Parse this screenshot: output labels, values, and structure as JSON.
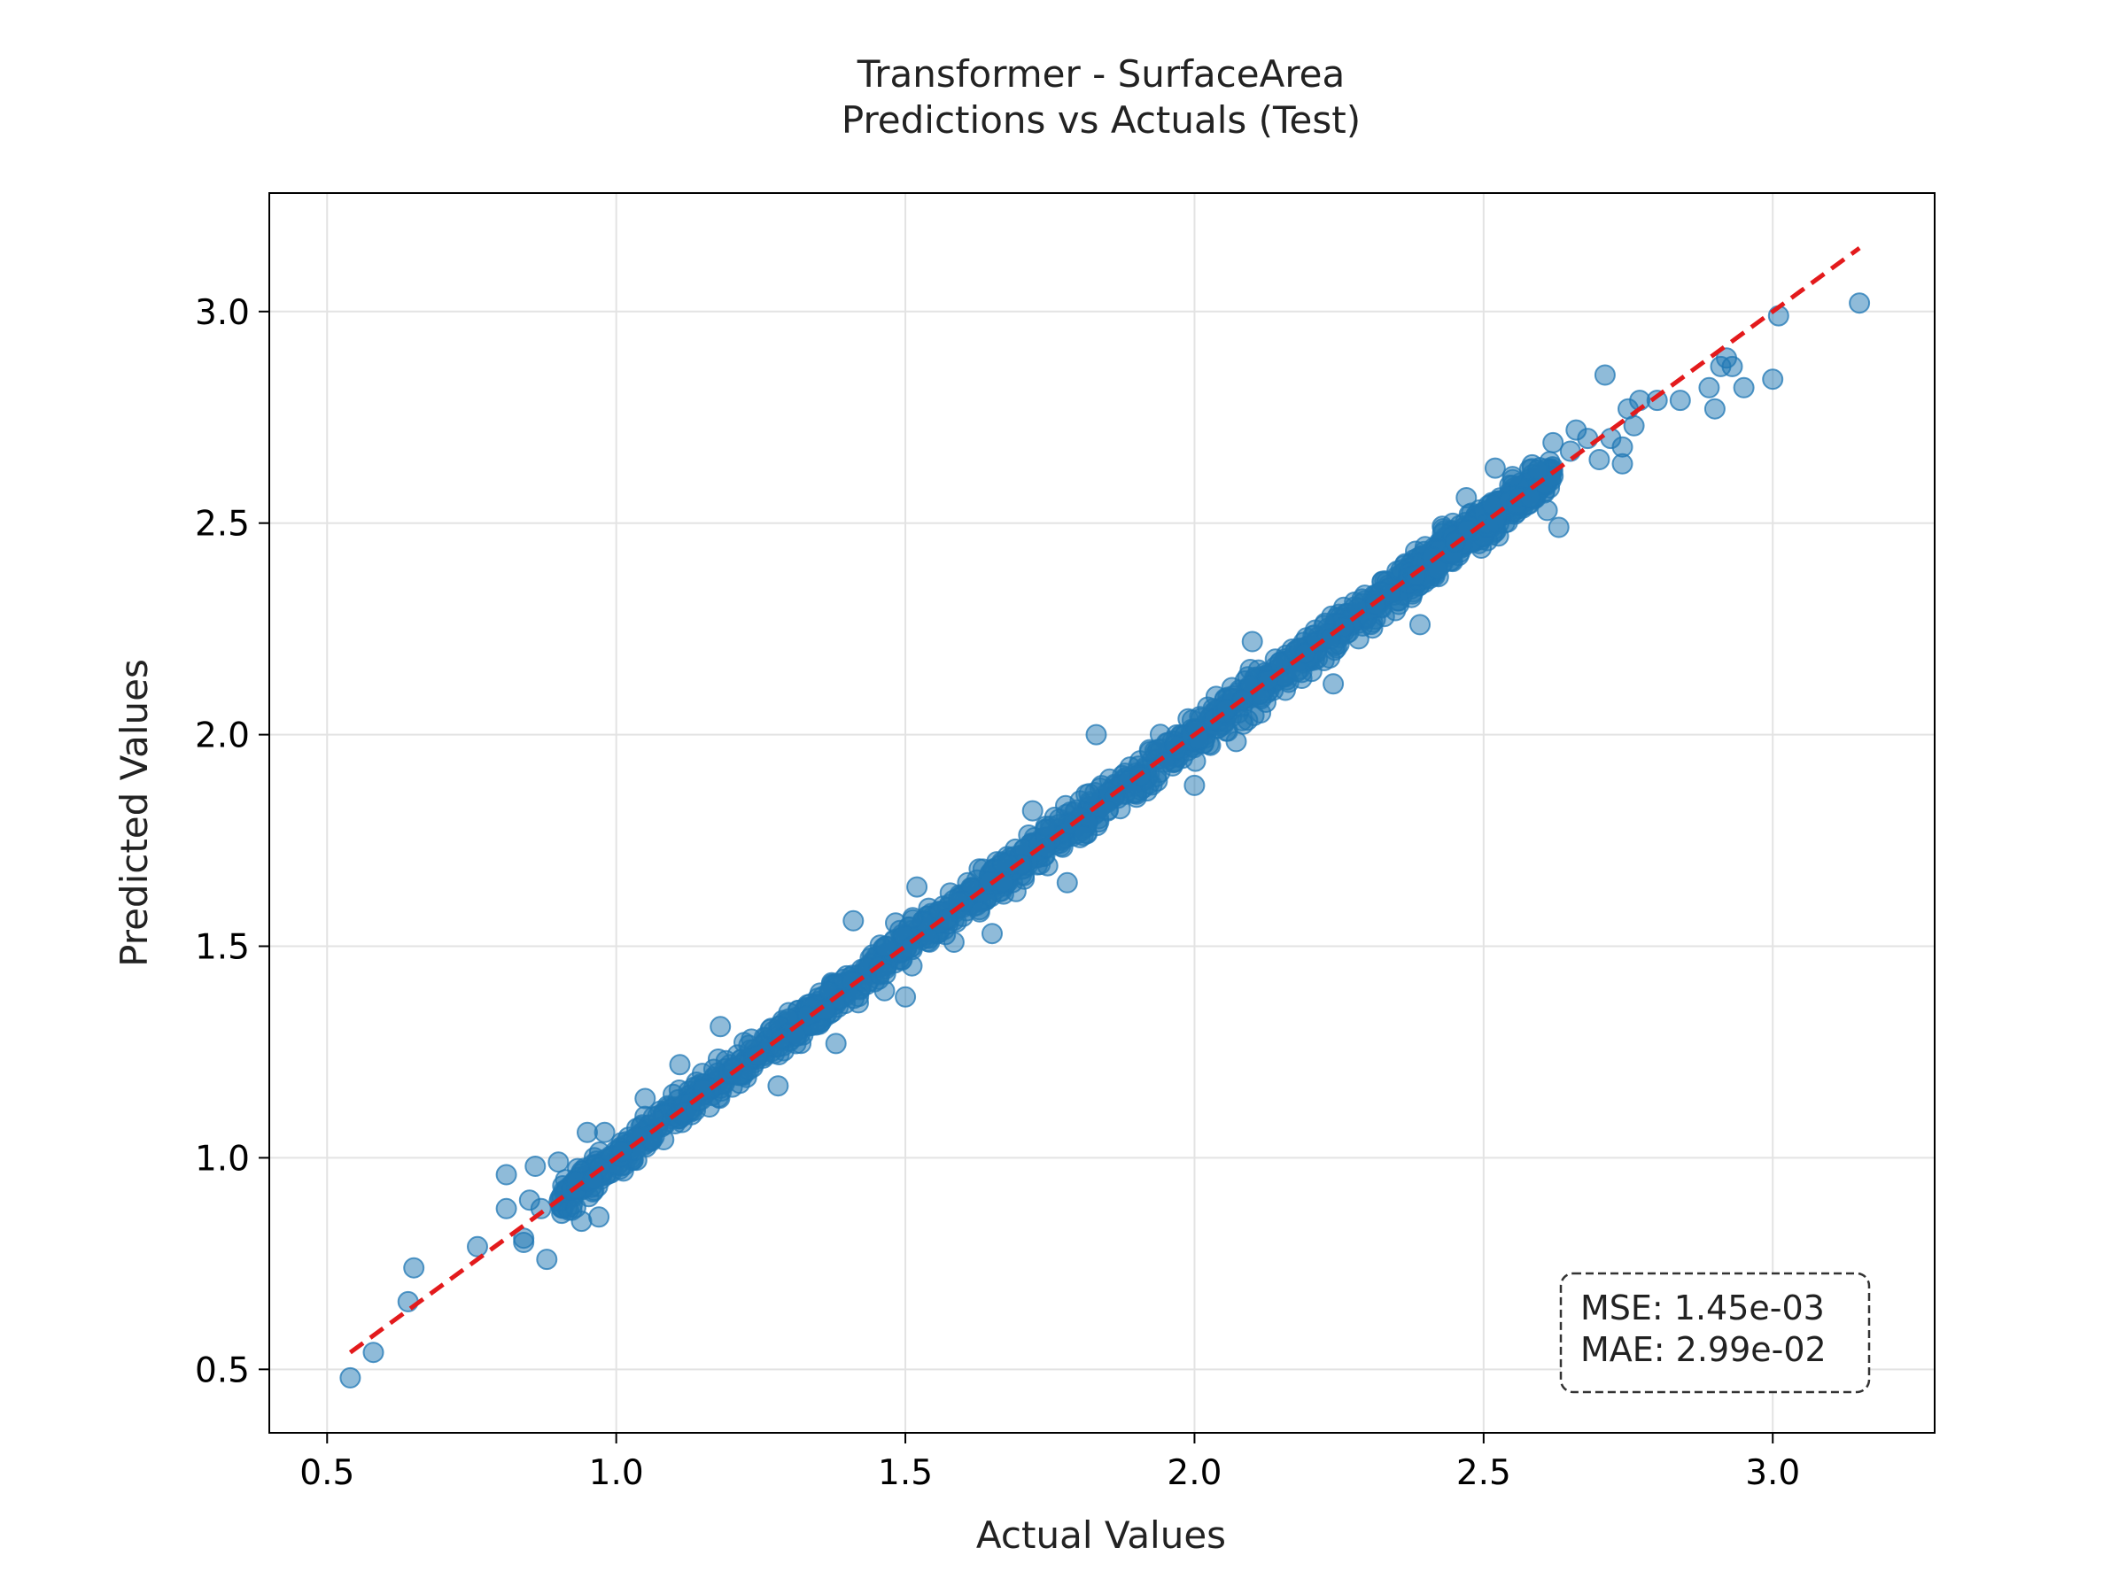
{
  "chart_data": {
    "type": "scatter",
    "title": "Transformer - SurfaceArea",
    "subtitle": "Predictions vs Actuals (Test)",
    "xlabel": "Actual Values",
    "ylabel": "Predicted Values",
    "xlim": [
      0.4,
      3.28
    ],
    "ylim": [
      0.35,
      3.28
    ],
    "xticks": [
      0.5,
      1.0,
      1.5,
      2.0,
      2.5,
      3.0
    ],
    "yticks": [
      0.5,
      1.0,
      1.5,
      2.0,
      2.5,
      3.0
    ],
    "xtick_labels": [
      "0.5",
      "1.0",
      "1.5",
      "2.0",
      "2.5",
      "3.0"
    ],
    "ytick_labels": [
      "0.5",
      "1.0",
      "1.5",
      "2.0",
      "2.5",
      "3.0"
    ],
    "grid": true,
    "point_color": "#1f77b4",
    "reference_line": {
      "x": [
        0.54,
        3.15
      ],
      "y": [
        0.54,
        3.15
      ],
      "color": "#e31a1c",
      "style": "dashed"
    },
    "stats": {
      "mse": "MSE: 1.45e-03",
      "mae": "MAE: 2.99e-02"
    },
    "outliers": [
      {
        "x": 0.54,
        "y": 0.48
      },
      {
        "x": 0.58,
        "y": 0.54
      },
      {
        "x": 0.64,
        "y": 0.66
      },
      {
        "x": 0.65,
        "y": 0.74
      },
      {
        "x": 0.76,
        "y": 0.79
      },
      {
        "x": 0.81,
        "y": 0.96
      },
      {
        "x": 0.81,
        "y": 0.88
      },
      {
        "x": 0.84,
        "y": 0.81
      },
      {
        "x": 0.84,
        "y": 0.8
      },
      {
        "x": 0.85,
        "y": 0.9
      },
      {
        "x": 0.86,
        "y": 0.98
      },
      {
        "x": 0.87,
        "y": 0.88
      },
      {
        "x": 0.88,
        "y": 0.76
      },
      {
        "x": 0.9,
        "y": 0.99
      },
      {
        "x": 0.94,
        "y": 0.85
      },
      {
        "x": 0.95,
        "y": 1.06
      },
      {
        "x": 0.96,
        "y": 0.95
      },
      {
        "x": 0.97,
        "y": 0.86
      },
      {
        "x": 0.98,
        "y": 1.06
      },
      {
        "x": 1.05,
        "y": 1.14
      },
      {
        "x": 1.11,
        "y": 1.22
      },
      {
        "x": 1.18,
        "y": 1.31
      },
      {
        "x": 1.28,
        "y": 1.17
      },
      {
        "x": 1.38,
        "y": 1.27
      },
      {
        "x": 1.41,
        "y": 1.56
      },
      {
        "x": 1.5,
        "y": 1.38
      },
      {
        "x": 1.52,
        "y": 1.64
      },
      {
        "x": 1.65,
        "y": 1.53
      },
      {
        "x": 1.72,
        "y": 1.82
      },
      {
        "x": 1.78,
        "y": 1.65
      },
      {
        "x": 1.83,
        "y": 2.0
      },
      {
        "x": 1.85,
        "y": 1.82
      },
      {
        "x": 2.0,
        "y": 1.88
      },
      {
        "x": 2.1,
        "y": 2.22
      },
      {
        "x": 2.24,
        "y": 2.12
      },
      {
        "x": 2.39,
        "y": 2.26
      },
      {
        "x": 2.47,
        "y": 2.56
      },
      {
        "x": 2.52,
        "y": 2.63
      },
      {
        "x": 2.55,
        "y": 2.61
      },
      {
        "x": 2.58,
        "y": 2.56
      },
      {
        "x": 2.61,
        "y": 2.53
      },
      {
        "x": 2.63,
        "y": 2.49
      },
      {
        "x": 2.62,
        "y": 2.69
      },
      {
        "x": 2.65,
        "y": 2.67
      },
      {
        "x": 2.66,
        "y": 2.72
      },
      {
        "x": 2.68,
        "y": 2.7
      },
      {
        "x": 2.7,
        "y": 2.65
      },
      {
        "x": 2.71,
        "y": 2.85
      },
      {
        "x": 2.72,
        "y": 2.7
      },
      {
        "x": 2.74,
        "y": 2.64
      },
      {
        "x": 2.74,
        "y": 2.68
      },
      {
        "x": 2.75,
        "y": 2.77
      },
      {
        "x": 2.76,
        "y": 2.73
      },
      {
        "x": 2.77,
        "y": 2.79
      },
      {
        "x": 2.8,
        "y": 2.79
      },
      {
        "x": 2.84,
        "y": 2.79
      },
      {
        "x": 2.89,
        "y": 2.82
      },
      {
        "x": 2.9,
        "y": 2.77
      },
      {
        "x": 2.91,
        "y": 2.87
      },
      {
        "x": 2.92,
        "y": 2.89
      },
      {
        "x": 2.93,
        "y": 2.87
      },
      {
        "x": 2.95,
        "y": 2.82
      },
      {
        "x": 3.0,
        "y": 2.84
      },
      {
        "x": 3.01,
        "y": 2.99
      },
      {
        "x": 3.15,
        "y": 3.02
      }
    ],
    "bulk_band": {
      "x_start": 0.9,
      "x_end": 2.62,
      "n_points": 1900,
      "noise_sd": 0.022
    }
  }
}
